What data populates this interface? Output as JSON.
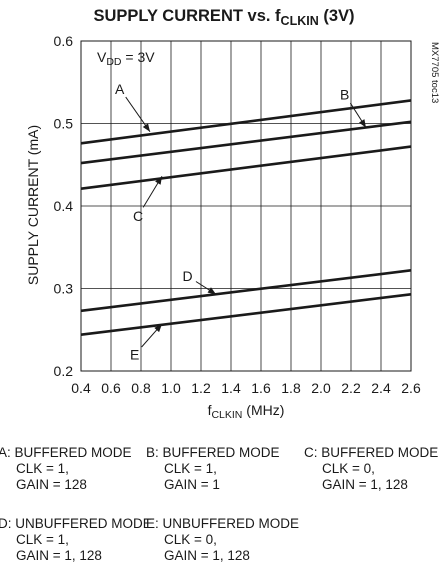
{
  "chart_data": {
    "type": "line",
    "title": "SUPPLY CURRENT vs. f",
    "title_sub": "CLKIN",
    "title_suffix": " (3V)",
    "ylabel": "SUPPLY CURRENT (mA)",
    "xlabel_main": "f",
    "xlabel_sub": "CLKIN",
    "xlabel_suffix": " (MHz)",
    "vdd_label_main": "V",
    "vdd_label_sub": "DD",
    "vdd_label_suffix": " = 3V",
    "watermark": "MX7705 toc13",
    "xlim": [
      0.4,
      2.6
    ],
    "ylim": [
      0.2,
      0.6
    ],
    "x_ticks": [
      "0.4",
      "0.6",
      "0.8",
      "1.0",
      "1.2",
      "1.4",
      "1.6",
      "1.8",
      "2.0",
      "2.2",
      "2.4",
      "2.6"
    ],
    "y_ticks": [
      "0.2",
      "0.3",
      "0.4",
      "0.5",
      "0.6"
    ],
    "grid": true,
    "series": [
      {
        "name": "A",
        "x": [
          0.4,
          2.6
        ],
        "y": [
          0.476,
          0.528
        ]
      },
      {
        "name": "B",
        "x": [
          0.4,
          2.6
        ],
        "y": [
          0.452,
          0.502
        ]
      },
      {
        "name": "C",
        "x": [
          0.4,
          2.6
        ],
        "y": [
          0.421,
          0.472
        ]
      },
      {
        "name": "D",
        "x": [
          0.4,
          2.6
        ],
        "y": [
          0.273,
          0.322
        ]
      },
      {
        "name": "E",
        "x": [
          0.4,
          2.6
        ],
        "y": [
          0.244,
          0.293
        ]
      }
    ],
    "annotations": [
      {
        "label": "A",
        "x_text": 0.66,
        "y_text": 0.542,
        "x_to": 0.86,
        "y_to": 0.49
      },
      {
        "label": "B",
        "x_text": 2.16,
        "y_text": 0.535,
        "x_to": 2.3,
        "y_to": 0.495
      },
      {
        "label": "C",
        "x_text": 0.78,
        "y_text": 0.388,
        "x_to": 0.94,
        "y_to": 0.436
      },
      {
        "label": "D",
        "x_text": 1.11,
        "y_text": 0.315,
        "x_to": 1.3,
        "y_to": 0.293
      },
      {
        "label": "E",
        "x_text": 0.76,
        "y_text": 0.22,
        "x_to": 0.94,
        "y_to": 0.257
      }
    ]
  },
  "legend": [
    {
      "title": "A: BUFFERED MODE",
      "lines": [
        "CLK = 1,",
        "GAIN = 128"
      ]
    },
    {
      "title": "B: BUFFERED MODE",
      "lines": [
        "CLK = 1,",
        "GAIN = 1"
      ]
    },
    {
      "title": "C: BUFFERED MODE",
      "lines": [
        "CLK = 0,",
        "GAIN = 1, 128"
      ]
    },
    {
      "title": "D: UNBUFFERED MODE",
      "lines": [
        "CLK = 1,",
        "GAIN = 1, 128"
      ]
    },
    {
      "title": "E: UNBUFFERED MODE",
      "lines": [
        "CLK = 0,",
        "GAIN = 1, 128"
      ]
    }
  ],
  "colors": {
    "line": "#1a1a1a",
    "grid": "#1a1a1a",
    "background": "#ffffff"
  }
}
